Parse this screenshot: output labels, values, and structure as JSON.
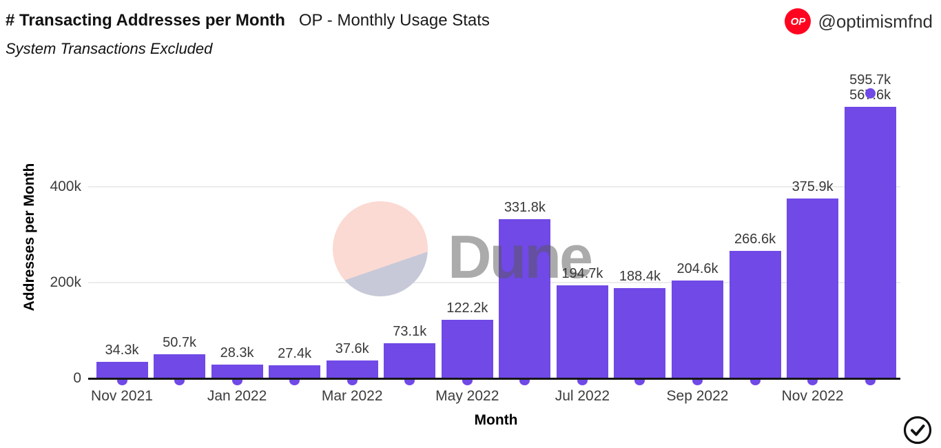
{
  "header": {
    "title": "# Transacting Addresses per Month",
    "context": "OP - Monthly Usage Stats",
    "subtitle": "System Transactions Excluded"
  },
  "attribution": {
    "logo_text": "OP",
    "handle": "@optimismfnd"
  },
  "watermark": {
    "text": "Dune"
  },
  "colors": {
    "bar": "#7049E6",
    "optimism_red": "#FF0420",
    "grid": "#ECECEC",
    "axis": "#161616",
    "tick_text": "#3C3C3C",
    "label_text": "#383838",
    "watermark_pink": "#FBDAD3",
    "watermark_lavender": "#C7C9D8"
  },
  "chart_data": {
    "type": "bar",
    "title": "# Transacting Addresses per Month",
    "context": "OP - Monthly Usage Stats",
    "subtitle": "System Transactions Excluded",
    "xlabel": "Month",
    "ylabel": "Addresses per Month",
    "legend": "none",
    "grid": "horizontal",
    "categories": [
      "Nov 2021",
      "Dec 2021",
      "Jan 2022",
      "Feb 2022",
      "Mar 2022",
      "Apr 2022",
      "May 2022",
      "Jun 2022",
      "Jul 2022",
      "Aug 2022",
      "Sep 2022",
      "Oct 2022",
      "Nov 2022",
      "Dec 2022"
    ],
    "values_k": [
      34.3,
      50.7,
      28.3,
      27.4,
      37.6,
      73.1,
      122.2,
      331.8,
      194.7,
      188.4,
      204.6,
      266.6,
      375.9,
      567.6
    ],
    "value_labels": [
      "34.3k",
      "50.7k",
      "28.3k",
      "27.4k",
      "37.6k",
      "73.1k",
      "122.2k",
      "331.8k",
      "194.7k",
      "188.4k",
      "204.6k",
      "266.6k",
      "375.9k",
      "567.6k"
    ],
    "extra_point": {
      "category": "Dec 2022",
      "value_k": 595.7,
      "label": "595.7k"
    },
    "x_ticks": [
      "Nov 2021",
      "Jan 2022",
      "Mar 2022",
      "May 2022",
      "Jul 2022",
      "Sep 2022",
      "Nov 2022"
    ],
    "y_ticks": [
      {
        "label": "0",
        "value_k": 0
      },
      {
        "label": "200k",
        "value_k": 200
      },
      {
        "label": "400k",
        "value_k": 400
      }
    ],
    "ylim_k": [
      0,
      620
    ]
  }
}
